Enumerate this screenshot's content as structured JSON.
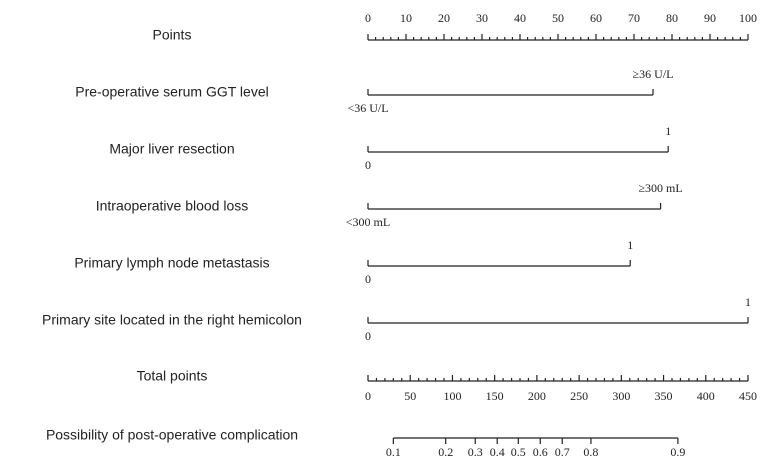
{
  "chart_data": {
    "type": "nomogram",
    "points_axis": {
      "label": "Points",
      "xlim": [
        0,
        100
      ],
      "xticks": [
        0,
        10,
        20,
        30,
        40,
        50,
        60,
        70,
        80,
        90,
        100
      ],
      "minor_ticks": [
        2,
        4,
        6,
        8,
        12,
        14,
        16,
        18,
        22,
        24,
        26,
        28,
        32,
        34,
        36,
        38,
        42,
        44,
        46,
        48,
        52,
        54,
        56,
        58,
        62,
        64,
        66,
        68,
        72,
        74,
        76,
        78,
        82,
        84,
        86,
        88,
        92,
        94,
        96,
        98
      ]
    },
    "variables": [
      {
        "label": "Pre-operative serum GGT level",
        "levels": [
          {
            "label": "<36 U/L",
            "points": 0
          },
          {
            "label": "≥36 U/L",
            "points": 75
          }
        ]
      },
      {
        "label": "Major liver resection",
        "levels": [
          {
            "label": "0",
            "points": 0
          },
          {
            "label": "1",
            "points": 79
          }
        ]
      },
      {
        "label": "Intraoperative blood loss",
        "levels": [
          {
            "label": "<300 mL",
            "points": 0
          },
          {
            "label": "≥300 mL",
            "points": 77
          }
        ]
      },
      {
        "label": "Primary lymph node metastasis",
        "levels": [
          {
            "label": "0",
            "points": 0
          },
          {
            "label": "1",
            "points": 69
          }
        ]
      },
      {
        "label": "Primary site located in the right hemicolon",
        "levels": [
          {
            "label": "0",
            "points": 0
          },
          {
            "label": "1",
            "points": 100
          }
        ]
      }
    ],
    "total_axis": {
      "label": "Total points",
      "xlim": [
        0,
        450
      ],
      "xticks": [
        0,
        50,
        100,
        150,
        200,
        250,
        300,
        350,
        400,
        450
      ],
      "minor_ticks": [
        10,
        20,
        30,
        40,
        60,
        70,
        80,
        90,
        110,
        120,
        130,
        140,
        160,
        170,
        180,
        190,
        210,
        220,
        230,
        240,
        260,
        270,
        280,
        290,
        310,
        320,
        330,
        340,
        360,
        370,
        380,
        390,
        410,
        420,
        430,
        440
      ]
    },
    "probability_axis": {
      "label": "Possibility of post-operative complication",
      "ticks": [
        {
          "value": 0.1,
          "total_points": 30
        },
        {
          "value": 0.2,
          "total_points": 92
        },
        {
          "value": 0.3,
          "total_points": 127
        },
        {
          "value": 0.4,
          "total_points": 153
        },
        {
          "value": 0.5,
          "total_points": 178
        },
        {
          "value": 0.6,
          "total_points": 204
        },
        {
          "value": 0.7,
          "total_points": 230
        },
        {
          "value": 0.8,
          "total_points": 264
        },
        {
          "value": 0.9,
          "total_points": 367
        }
      ]
    }
  }
}
